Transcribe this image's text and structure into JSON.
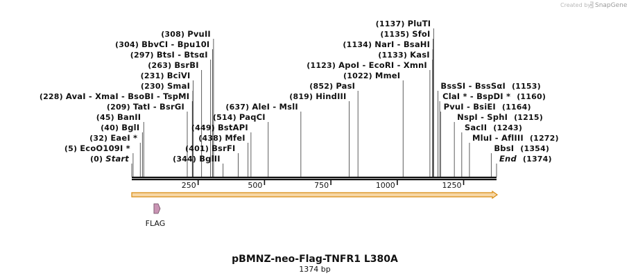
{
  "branding": {
    "created_by": "Created by",
    "product": "SnapGene"
  },
  "map": {
    "title": "pBMNZ-neo-Flag-TNFR1 L380A",
    "length_label": "1374 bp",
    "length_bp": 1374,
    "ticks": [
      {
        "pos": 250,
        "label": "250"
      },
      {
        "pos": 500,
        "label": "500"
      },
      {
        "pos": 750,
        "label": "750"
      },
      {
        "pos": 1000,
        "label": "1000"
      },
      {
        "pos": 1250,
        "label": "1250"
      }
    ],
    "colors": {
      "backbone": "#111111",
      "orf_fill": "#f7d7a6",
      "orf_stroke": "#d88b10",
      "feature_fill": "#c994b4",
      "feature_stroke": "#6a4a5e"
    },
    "orf": {
      "start": 0,
      "end": 1374,
      "direction": "forward"
    },
    "features": [
      {
        "name": "FLAG",
        "start": 60,
        "end": 84,
        "direction": "forward"
      }
    ],
    "sites_left": [
      {
        "pos": 0,
        "pos_label": "(0)",
        "parts": [
          {
            "text": "Start",
            "italic": true
          }
        ]
      },
      {
        "pos": 5,
        "pos_label": "(5)",
        "parts": [
          {
            "text": "EcoO109I *"
          }
        ]
      },
      {
        "pos": 32,
        "pos_label": "(32)",
        "parts": [
          {
            "text": "EaeI *"
          }
        ]
      },
      {
        "pos": 40,
        "pos_label": "(40)",
        "parts": [
          {
            "text": "BglI"
          }
        ]
      },
      {
        "pos": 45,
        "pos_label": "(45)",
        "parts": [
          {
            "text": "BanII"
          }
        ]
      },
      {
        "pos": 209,
        "pos_label": "(209)",
        "parts": [
          {
            "text": "TatI"
          },
          {
            "text": "BsrGI"
          }
        ]
      },
      {
        "pos": 228,
        "pos_label": "(228)",
        "parts": [
          {
            "text": "AvaI"
          },
          {
            "text": "XmaI"
          },
          {
            "text": "BsoBI"
          },
          {
            "text": "TspMI"
          }
        ]
      },
      {
        "pos": 230,
        "pos_label": "(230)",
        "parts": [
          {
            "text": "SmaI"
          }
        ]
      },
      {
        "pos": 231,
        "pos_label": "(231)",
        "parts": [
          {
            "text": "BciVI"
          }
        ]
      },
      {
        "pos": 263,
        "pos_label": "(263)",
        "parts": [
          {
            "text": "BsrBI"
          }
        ]
      },
      {
        "pos": 297,
        "pos_label": "(297)",
        "parts": [
          {
            "text": "BtsI"
          },
          {
            "text": "BtsαI"
          }
        ]
      },
      {
        "pos": 304,
        "pos_label": "(304)",
        "parts": [
          {
            "text": "BbvCI"
          },
          {
            "text": "Bpu10I"
          }
        ]
      },
      {
        "pos": 308,
        "pos_label": "(308)",
        "parts": [
          {
            "text": "PvuII"
          }
        ]
      }
    ],
    "sites_mid": [
      {
        "pos": 344,
        "pos_label": "(344)",
        "parts": [
          {
            "text": "BglII"
          }
        ]
      },
      {
        "pos": 401,
        "pos_label": "(401)",
        "parts": [
          {
            "text": "BsrFI"
          }
        ]
      },
      {
        "pos": 438,
        "pos_label": "(438)",
        "parts": [
          {
            "text": "MfeI"
          }
        ]
      },
      {
        "pos": 449,
        "pos_label": "(449)",
        "parts": [
          {
            "text": "BstAPI"
          }
        ]
      },
      {
        "pos": 514,
        "pos_label": "(514)",
        "parts": [
          {
            "text": "PaqCI"
          }
        ]
      },
      {
        "pos": 637,
        "pos_label": "(637)",
        "parts": [
          {
            "text": "AleI"
          },
          {
            "text": "MslI"
          }
        ]
      },
      {
        "pos": 819,
        "pos_label": "(819)",
        "parts": [
          {
            "text": "HindIII"
          }
        ]
      },
      {
        "pos": 852,
        "pos_label": "(852)",
        "parts": [
          {
            "text": "PasI"
          }
        ]
      },
      {
        "pos": 1022,
        "pos_label": "(1022)",
        "parts": [
          {
            "text": "MmeI"
          }
        ]
      },
      {
        "pos": 1123,
        "pos_label": "(1123)",
        "parts": [
          {
            "text": "ApoI"
          },
          {
            "text": "EcoRI"
          },
          {
            "text": "XmnI"
          }
        ]
      },
      {
        "pos": 1133,
        "pos_label": "(1133)",
        "parts": [
          {
            "text": "KasI"
          }
        ]
      },
      {
        "pos": 1134,
        "pos_label": "(1134)",
        "parts": [
          {
            "text": "NarI"
          },
          {
            "text": "BsaHI"
          }
        ]
      },
      {
        "pos": 1135,
        "pos_label": "(1135)",
        "parts": [
          {
            "text": "SfoI"
          }
        ]
      },
      {
        "pos": 1137,
        "pos_label": "(1137)",
        "parts": [
          {
            "text": "PluTI"
          }
        ]
      }
    ],
    "sites_right": [
      {
        "pos": 1153,
        "pos_label": "(1153)",
        "parts": [
          {
            "text": "BssSI"
          },
          {
            "text": "BssSαI"
          }
        ]
      },
      {
        "pos": 1160,
        "pos_label": "(1160)",
        "parts": [
          {
            "text": "ClaI *"
          },
          {
            "text": "BspDI *"
          }
        ]
      },
      {
        "pos": 1164,
        "pos_label": "(1164)",
        "parts": [
          {
            "text": "PvuI"
          },
          {
            "text": "BsiEI"
          }
        ]
      },
      {
        "pos": 1215,
        "pos_label": "(1215)",
        "parts": [
          {
            "text": "NspI"
          },
          {
            "text": "SphI"
          }
        ]
      },
      {
        "pos": 1243,
        "pos_label": "(1243)",
        "parts": [
          {
            "text": "SacII"
          }
        ]
      },
      {
        "pos": 1272,
        "pos_label": "(1272)",
        "parts": [
          {
            "text": "MluI"
          },
          {
            "text": "AflIII"
          }
        ]
      },
      {
        "pos": 1354,
        "pos_label": "(1354)",
        "parts": [
          {
            "text": "BbsI"
          }
        ]
      },
      {
        "pos": 1374,
        "pos_label": "(1374)",
        "parts": [
          {
            "text": "End",
            "italic": true
          }
        ]
      }
    ]
  }
}
